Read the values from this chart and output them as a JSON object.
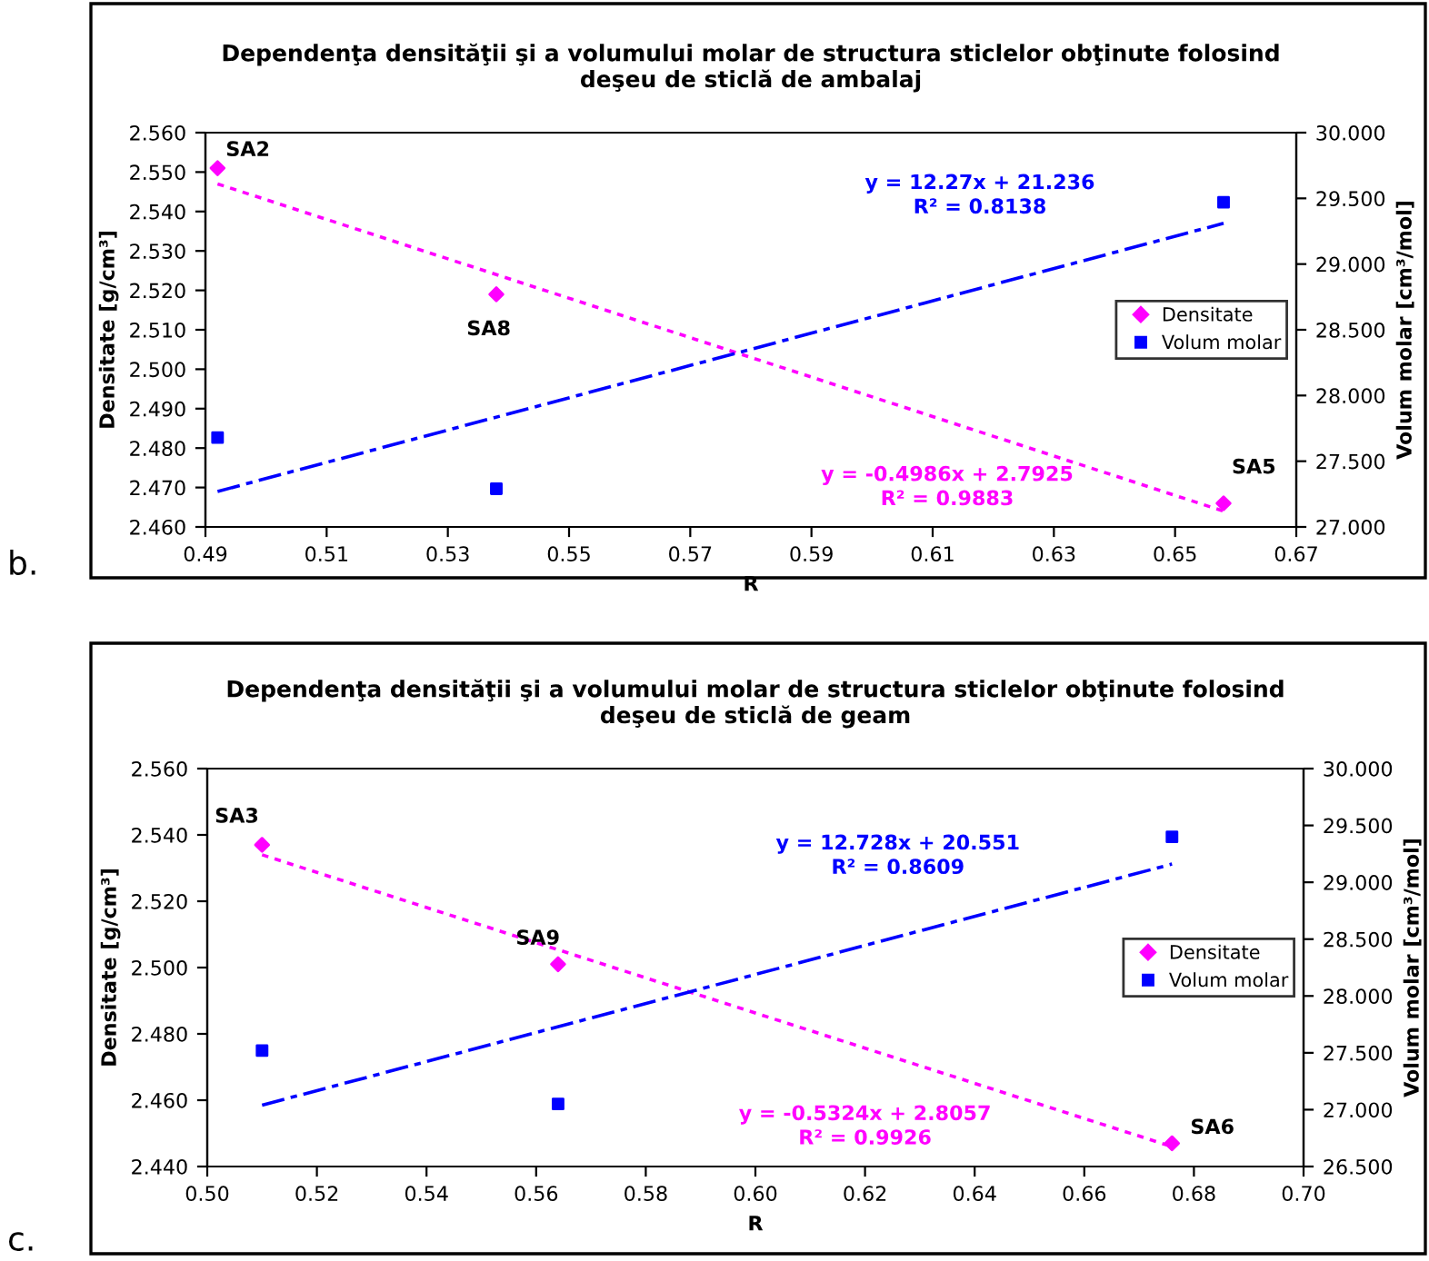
{
  "chart_data": [
    {
      "type": "scatter",
      "title": "Dependenţa densităţii şi a volumului molar de structura sticlelor obţinute folosind\ndeşeu de sticlă de ambalaj",
      "xlabel": "R",
      "ylabel": "Densitate [g/cm³]",
      "y2label": "Volum molar [cm³/mol]",
      "legend": "right",
      "grid": false,
      "xlim": [
        0.49,
        0.67
      ],
      "xticks": [
        {
          "value": 0.49,
          "label": "0.49"
        },
        {
          "value": 0.51,
          "label": "0.51"
        },
        {
          "value": 0.53,
          "label": "0.53"
        },
        {
          "value": 0.55,
          "label": "0.55"
        },
        {
          "value": 0.57,
          "label": "0.57"
        },
        {
          "value": 0.59,
          "label": "0.59"
        },
        {
          "value": 0.61,
          "label": "0.61"
        },
        {
          "value": 0.63,
          "label": "0.63"
        },
        {
          "value": 0.65,
          "label": "0.65"
        },
        {
          "value": 0.67,
          "label": "0.67"
        }
      ],
      "ylim": [
        2.46,
        2.56
      ],
      "yticks": [
        {
          "value": 2.46,
          "label": "2.460"
        },
        {
          "value": 2.47,
          "label": "2.470"
        },
        {
          "value": 2.48,
          "label": "2.480"
        },
        {
          "value": 2.49,
          "label": "2.490"
        },
        {
          "value": 2.5,
          "label": "2.500"
        },
        {
          "value": 2.51,
          "label": "2.510"
        },
        {
          "value": 2.52,
          "label": "2.520"
        },
        {
          "value": 2.53,
          "label": "2.530"
        },
        {
          "value": 2.54,
          "label": "2.540"
        },
        {
          "value": 2.55,
          "label": "2.550"
        },
        {
          "value": 2.56,
          "label": "2.560"
        }
      ],
      "y2lim": [
        27,
        30
      ],
      "y2ticks": [
        {
          "value": 27,
          "label": "27.000"
        },
        {
          "value": 27.5,
          "label": "27.500"
        },
        {
          "value": 28,
          "label": "28.000"
        },
        {
          "value": 28.5,
          "label": "28.500"
        },
        {
          "value": 29,
          "label": "29.000"
        },
        {
          "value": 29.5,
          "label": "29.500"
        },
        {
          "value": 30,
          "label": "30.000"
        }
      ],
      "series": [
        {
          "name": "Densitate",
          "marker": "diamond",
          "color": "#ff00ff",
          "x": [
            0.492,
            0.538,
            0.658
          ],
          "values": [
            2.551,
            2.519,
            2.466
          ],
          "value_labels": [
            "SA2",
            "SA8",
            "SA5"
          ]
        },
        {
          "name": "Volum molar",
          "marker": "square",
          "color": "#0000ff",
          "axis": "y2",
          "x": [
            0.492,
            0.538,
            0.658
          ],
          "values": [
            27.68,
            27.29,
            29.47
          ]
        },
        {
          "type": "line",
          "line_style": "dashdot",
          "color": "#0000ff",
          "axis": "y2",
          "x": [
            0.492,
            0.658
          ],
          "values": [
            27.27,
            29.31
          ]
        },
        {
          "type": "line",
          "line_style": "dotted",
          "color": "#ff00ff",
          "x": [
            0.492,
            0.658
          ],
          "values": [
            2.547,
            2.464
          ]
        }
      ],
      "annotations": [
        "y = 12.27x + 21.236\nR² = 0.8138",
        "y = -0.4986x + 2.7925\nR² = 0.9883",
        "b."
      ]
    },
    {
      "type": "scatter",
      "title": "Dependenţa densităţii şi a volumului molar de structura sticlelor obţinute folosind\ndeşeu de sticlă de geam",
      "xlabel": "R",
      "ylabel": "Densitate [g/cm³]",
      "y2label": "Volum molar [cm³/mol]",
      "legend": "right",
      "grid": false,
      "xlim": [
        0.5,
        0.7
      ],
      "xticks": [
        {
          "value": 0.5,
          "label": "0.50"
        },
        {
          "value": 0.52,
          "label": "0.52"
        },
        {
          "value": 0.54,
          "label": "0.54"
        },
        {
          "value": 0.56,
          "label": "0.56"
        },
        {
          "value": 0.58,
          "label": "0.58"
        },
        {
          "value": 0.6,
          "label": "0.60"
        },
        {
          "value": 0.62,
          "label": "0.62"
        },
        {
          "value": 0.64,
          "label": "0.64"
        },
        {
          "value": 0.66,
          "label": "0.66"
        },
        {
          "value": 0.68,
          "label": "0.68"
        },
        {
          "value": 0.7,
          "label": "0.70"
        }
      ],
      "ylim": [
        2.44,
        2.56
      ],
      "yticks": [
        {
          "value": 2.44,
          "label": "2.440"
        },
        {
          "value": 2.46,
          "label": "2.460"
        },
        {
          "value": 2.48,
          "label": "2.480"
        },
        {
          "value": 2.5,
          "label": "2.500"
        },
        {
          "value": 2.52,
          "label": "2.520"
        },
        {
          "value": 2.54,
          "label": "2.540"
        },
        {
          "value": 2.56,
          "label": "2.560"
        }
      ],
      "y2lim": [
        26.5,
        30
      ],
      "y2ticks": [
        {
          "value": 26.5,
          "label": "26.500"
        },
        {
          "value": 27,
          "label": "27.000"
        },
        {
          "value": 27.5,
          "label": "27.500"
        },
        {
          "value": 28,
          "label": "28.000"
        },
        {
          "value": 28.5,
          "label": "28.500"
        },
        {
          "value": 29,
          "label": "29.000"
        },
        {
          "value": 29.5,
          "label": "29.500"
        },
        {
          "value": 30,
          "label": "30.000"
        }
      ],
      "series": [
        {
          "name": "Densitate",
          "marker": "diamond",
          "color": "#ff00ff",
          "x": [
            0.51,
            0.564,
            0.676
          ],
          "values": [
            2.537,
            2.501,
            2.447
          ],
          "value_labels": [
            "SA3",
            "SA9",
            "SA6"
          ]
        },
        {
          "name": "Volum molar",
          "marker": "square",
          "color": "#0000ff",
          "axis": "y2",
          "x": [
            0.51,
            0.564,
            0.676
          ],
          "values": [
            27.52,
            27.05,
            29.4
          ]
        },
        {
          "type": "line",
          "line_style": "dashdot",
          "color": "#0000ff",
          "axis": "y2",
          "x": [
            0.51,
            0.676
          ],
          "values": [
            27.04,
            29.16
          ]
        },
        {
          "type": "line",
          "line_style": "dotted",
          "color": "#ff00ff",
          "x": [
            0.51,
            0.676
          ],
          "values": [
            2.534,
            2.446
          ]
        }
      ],
      "annotations": [
        "y = 12.728x + 20.551\nR² = 0.8609",
        "y = -0.5324x + 2.8057\nR² = 0.9926",
        "c."
      ]
    }
  ]
}
